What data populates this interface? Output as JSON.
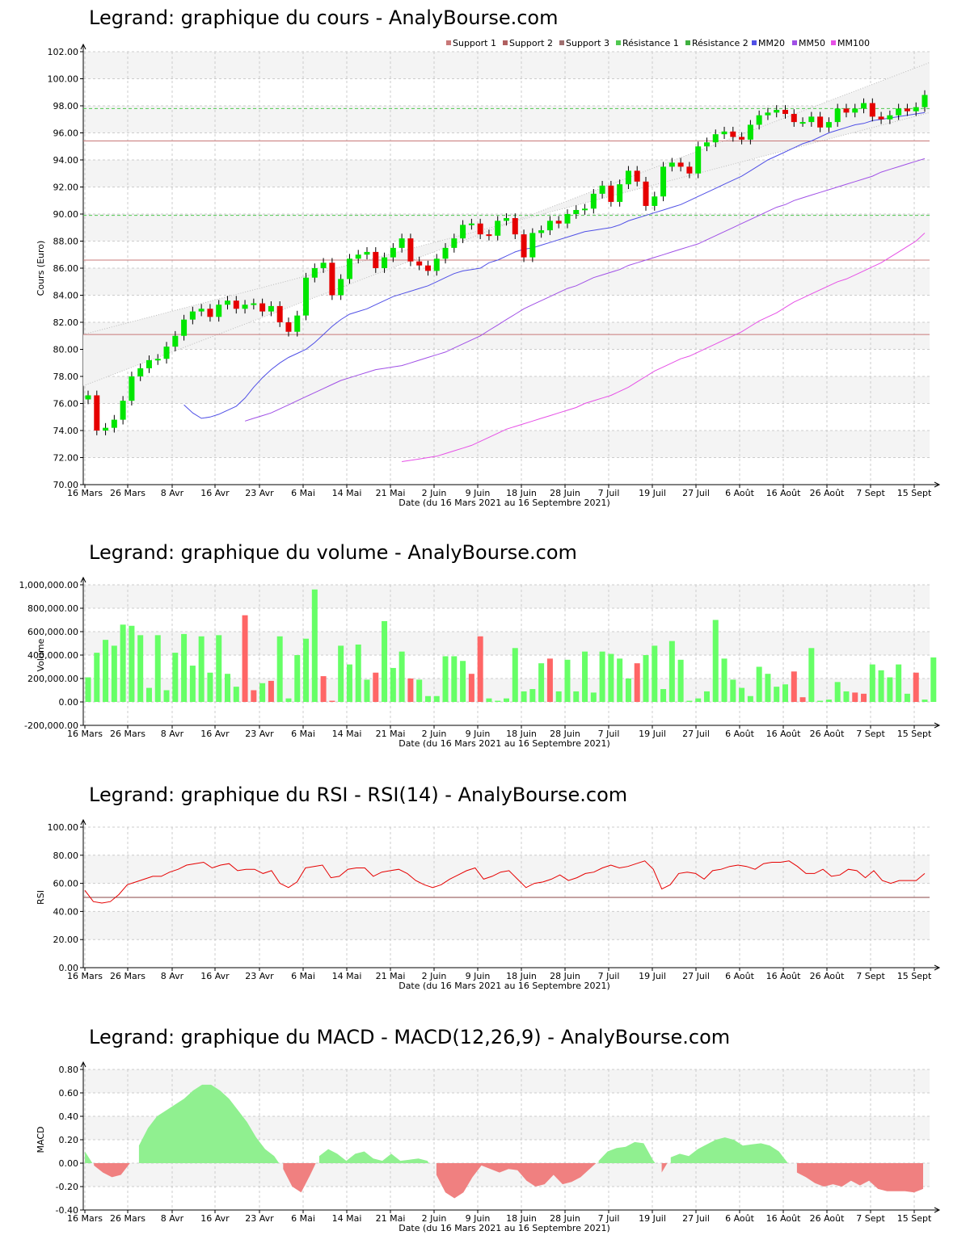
{
  "xlabel": "Date (du 16 Mars 2021 au 16 Septembre 2021)",
  "x_ticks": [
    "16 Mars",
    "26 Mars",
    "8 Avr",
    "16 Avr",
    "23 Avr",
    "6 Mai",
    "14 Mai",
    "21 Mai",
    "2 Juin",
    "9 Juin",
    "18 Juin",
    "28 Juin",
    "7 Juil",
    "19 Juil",
    "27 Juil",
    "6 Août",
    "16 Août",
    "26 Août",
    "7 Sept",
    "15 Sept"
  ],
  "colors": {
    "up": "#00e600",
    "down": "#e60000",
    "support": "#c87878",
    "resistance": "#50c850",
    "mm20": "#5050e6",
    "mm50": "#a050e6",
    "mm100": "#e650e6",
    "rsi": "#e60000",
    "macd_pos": "#90f090",
    "macd_neg": "#f08080"
  },
  "chart_data": [
    {
      "id": "price",
      "type": "candlestick",
      "title": "Legrand: graphique du cours - AnalyBourse.com",
      "ylabel": "Cours (Euro)",
      "ylim": [
        70,
        102
      ],
      "y_ticks": [
        "70.00",
        "72.00",
        "74.00",
        "76.00",
        "78.00",
        "80.00",
        "82.00",
        "84.00",
        "86.00",
        "88.00",
        "90.00",
        "92.00",
        "94.00",
        "96.00",
        "98.00",
        "100.00",
        "102.00"
      ],
      "legend_placement": "top-right",
      "legend": [
        "Support 1",
        "Support 2",
        "Support 3",
        "Résistance 1",
        "Résistance 2",
        "MM20",
        "MM50",
        "MM100"
      ],
      "levels": {
        "support": [
          95.4,
          86.6,
          81.1
        ],
        "resistance": [
          97.8,
          89.9
        ]
      },
      "close": [
        76.6,
        74.0,
        74.2,
        74.8,
        76.2,
        78.0,
        78.6,
        79.2,
        79.3,
        80.2,
        81.0,
        82.2,
        82.8,
        83.0,
        82.4,
        83.3,
        83.6,
        83.0,
        83.3,
        83.4,
        82.8,
        83.2,
        82.0,
        81.3,
        82.5,
        85.3,
        86.0,
        86.4,
        84.0,
        85.2,
        86.7,
        87.0,
        87.2,
        86.0,
        86.8,
        87.5,
        88.2,
        86.5,
        86.2,
        85.8,
        86.7,
        87.5,
        88.2,
        89.2,
        89.3,
        88.5,
        88.4,
        89.5,
        89.7,
        88.5,
        86.8,
        88.6,
        88.8,
        89.5,
        89.3,
        90.0,
        90.3,
        90.4,
        91.5,
        92.1,
        90.9,
        92.2,
        93.2,
        92.4,
        90.6,
        91.3,
        93.5,
        93.8,
        93.5,
        93.0,
        95.0,
        95.3,
        95.9,
        96.1,
        95.7,
        95.5,
        96.6,
        97.3,
        97.5,
        97.7,
        97.4,
        96.8,
        96.8,
        97.2,
        96.4,
        96.8,
        97.8,
        97.5,
        97.8,
        98.2,
        97.2,
        97.0,
        97.3,
        97.8,
        97.6,
        97.9,
        98.8
      ],
      "mm20": [
        75.9,
        75.3,
        74.9,
        75.0,
        75.2,
        75.5,
        75.8,
        76.4,
        77.2,
        77.9,
        78.5,
        79.0,
        79.4,
        79.7,
        80.0,
        80.5,
        81.1,
        81.7,
        82.2,
        82.6,
        82.8,
        83.0,
        83.3,
        83.6,
        83.9,
        84.1,
        84.3,
        84.5,
        84.7,
        85.0,
        85.3,
        85.6,
        85.8,
        85.9,
        86.0,
        86.4,
        86.6,
        86.9,
        87.2,
        87.4,
        87.5,
        87.7,
        87.9,
        88.1,
        88.3,
        88.5,
        88.7,
        88.8,
        88.9,
        89.0,
        89.2,
        89.5,
        89.7,
        89.9,
        90.1,
        90.3,
        90.5,
        90.7,
        91.0,
        91.3,
        91.6,
        91.9,
        92.2,
        92.5,
        92.8,
        93.2,
        93.6,
        94.0,
        94.3,
        94.6,
        94.9,
        95.2,
        95.4,
        95.7,
        96.0,
        96.2,
        96.4,
        96.6,
        96.7,
        96.9,
        97.0,
        97.1,
        97.2,
        97.3,
        97.4,
        97.5
      ],
      "mm50": [
        74.7,
        74.9,
        75.1,
        75.3,
        75.6,
        75.9,
        76.2,
        76.5,
        76.8,
        77.1,
        77.4,
        77.7,
        77.9,
        78.1,
        78.3,
        78.5,
        78.6,
        78.7,
        78.8,
        79.0,
        79.2,
        79.4,
        79.6,
        79.8,
        80.1,
        80.4,
        80.7,
        81.0,
        81.4,
        81.8,
        82.2,
        82.6,
        83.0,
        83.3,
        83.6,
        83.9,
        84.2,
        84.5,
        84.7,
        85.0,
        85.3,
        85.5,
        85.7,
        85.9,
        86.2,
        86.4,
        86.6,
        86.8,
        87.0,
        87.2,
        87.4,
        87.6,
        87.8,
        88.1,
        88.4,
        88.7,
        89.0,
        89.3,
        89.6,
        89.9,
        90.2,
        90.5,
        90.7,
        91.0,
        91.2,
        91.4,
        91.6,
        91.8,
        92.0,
        92.2,
        92.4,
        92.6,
        92.8,
        93.1,
        93.3,
        93.5,
        93.7,
        93.9,
        94.1
      ],
      "mm100": [
        71.7,
        71.8,
        71.9,
        72.0,
        72.1,
        72.3,
        72.5,
        72.7,
        72.9,
        73.2,
        73.5,
        73.8,
        74.1,
        74.3,
        74.5,
        74.7,
        74.9,
        75.1,
        75.3,
        75.5,
        75.7,
        76.0,
        76.2,
        76.4,
        76.6,
        76.9,
        77.2,
        77.6,
        78.0,
        78.4,
        78.7,
        79.0,
        79.3,
        79.5,
        79.8,
        80.1,
        80.4,
        80.7,
        81.0,
        81.3,
        81.7,
        82.1,
        82.4,
        82.7,
        83.1,
        83.5,
        83.8,
        84.1,
        84.4,
        84.7,
        85.0,
        85.2,
        85.5,
        85.8,
        86.1,
        86.4,
        86.8,
        87.2,
        87.6,
        88.0,
        88.6
      ]
    },
    {
      "id": "volume",
      "type": "bar",
      "title": "Legrand: graphique du volume - AnalyBourse.com",
      "ylabel": "Volume",
      "ylim": [
        -200000,
        1000000
      ],
      "y_ticks": [
        "-200,000.00",
        "0.00",
        "200,000.00",
        "400,000.00",
        "600,000.00",
        "800,000.00",
        "1,000,000.00"
      ],
      "values": [
        210000,
        420000,
        530000,
        480000,
        660000,
        650000,
        570000,
        120000,
        570000,
        100000,
        420000,
        580000,
        310000,
        560000,
        250000,
        570000,
        240000,
        130000,
        740000,
        100000,
        160000,
        180000,
        560000,
        30000,
        400000,
        540000,
        960000,
        220000,
        10000,
        480000,
        320000,
        490000,
        190000,
        250000,
        690000,
        290000,
        430000,
        200000,
        190000,
        50000,
        50000,
        390000,
        390000,
        350000,
        240000,
        560000,
        30000,
        10000,
        30000,
        460000,
        90000,
        110000,
        330000,
        370000,
        90000,
        360000,
        90000,
        430000,
        80000,
        430000,
        410000,
        370000,
        200000,
        330000,
        400000,
        480000,
        110000,
        520000,
        360000,
        10000,
        30000,
        90000,
        700000,
        370000,
        190000,
        120000,
        50000,
        300000,
        240000,
        130000,
        150000,
        260000,
        40000,
        460000,
        10000,
        20000,
        170000,
        90000,
        80000,
        70000,
        320000,
        270000,
        210000,
        320000,
        70000,
        250000,
        20000,
        380000
      ],
      "directions": "uuuuuuuuuuuuuuuuuudduduuuuudduuuuduuuduuuuuudduuuuuuuduuuuuuuuuduuuuuuuuuuuuuuuuudduuuuudduuuuudu"
    },
    {
      "id": "rsi",
      "type": "line",
      "title": "Legrand: graphique du RSI - RSI(14) - AnalyBourse.com",
      "ylabel": "RSI",
      "ylim": [
        0,
        100
      ],
      "y_ticks": [
        "0.00",
        "20.00",
        "40.00",
        "60.00",
        "80.00",
        "100.00"
      ],
      "reference": 50,
      "values": [
        55,
        47,
        46,
        47,
        52,
        59,
        61,
        63,
        65,
        65,
        68,
        70,
        73,
        74,
        75,
        71,
        73,
        74,
        69,
        70,
        70,
        67,
        69,
        60,
        57,
        61,
        71,
        72,
        73,
        64,
        65,
        70,
        71,
        71,
        65,
        68,
        69,
        70,
        67,
        62,
        59,
        57,
        59,
        63,
        66,
        69,
        71,
        63,
        65,
        68,
        69,
        63,
        57,
        60,
        61,
        63,
        66,
        62,
        64,
        67,
        68,
        71,
        73,
        71,
        72,
        74,
        76,
        70,
        56,
        59,
        67,
        68,
        67,
        63,
        69,
        70,
        72,
        73,
        72,
        70,
        74,
        75,
        75,
        76,
        72,
        67,
        67,
        70,
        65,
        66,
        70,
        69,
        64,
        69,
        62,
        60,
        62,
        62,
        62,
        67
      ]
    },
    {
      "id": "macd",
      "type": "area",
      "title": "Legrand: graphique du MACD - MACD(12,26,9) - AnalyBourse.com",
      "ylabel": "MACD",
      "ylim": [
        -0.4,
        0.8
      ],
      "y_ticks": [
        "-0.40",
        "-0.20",
        "0.00",
        "0.20",
        "0.40",
        "0.60",
        "0.80"
      ],
      "values": [
        0.1,
        -0.02,
        -0.08,
        -0.12,
        -0.1,
        0.0,
        0.15,
        0.3,
        0.4,
        0.45,
        0.5,
        0.55,
        0.62,
        0.67,
        0.67,
        0.62,
        0.55,
        0.45,
        0.35,
        0.22,
        0.12,
        0.06,
        -0.05,
        -0.2,
        -0.25,
        -0.1,
        0.06,
        0.12,
        0.08,
        0.02,
        0.08,
        0.1,
        0.04,
        0.02,
        0.08,
        0.02,
        0.03,
        0.04,
        0.02,
        -0.1,
        -0.25,
        -0.3,
        -0.25,
        -0.12,
        -0.02,
        -0.05,
        -0.08,
        -0.05,
        -0.06,
        -0.15,
        -0.2,
        -0.18,
        -0.1,
        -0.18,
        -0.16,
        -0.12,
        -0.05,
        0.02,
        0.1,
        0.13,
        0.14,
        0.18,
        0.17,
        0.03,
        -0.08,
        0.05,
        0.08,
        0.06,
        0.12,
        0.16,
        0.2,
        0.22,
        0.2,
        0.15,
        0.16,
        0.17,
        0.15,
        0.1,
        0.0,
        -0.08,
        -0.12,
        -0.17,
        -0.2,
        -0.18,
        -0.2,
        -0.15,
        -0.19,
        -0.15,
        -0.22,
        -0.24,
        -0.24,
        -0.24,
        -0.25,
        -0.22
      ]
    }
  ]
}
